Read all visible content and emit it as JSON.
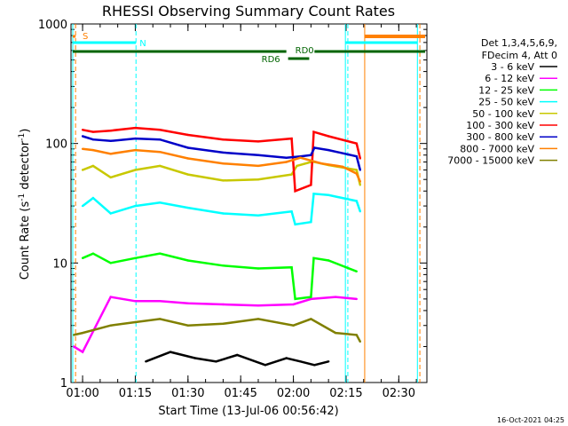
{
  "chart_data": {
    "type": "line",
    "title": "RHESSI Observing Summary Count Rates",
    "xlabel": "Start Time (13-Jul-06 00:56:42)",
    "ylabel_main": "Count Rate (s",
    "ylabel_sup": "-1",
    "ylabel_mid": " detector",
    "ylabel_sup2": "-1",
    "ylabel_end": ")",
    "yscale": "log",
    "ylim": [
      1,
      1000
    ],
    "xlim_minutes": [
      56.7,
      158.0
    ],
    "x_ticks": [
      {
        "label": "01:00",
        "min": 60
      },
      {
        "label": "01:15",
        "min": 75
      },
      {
        "label": "01:30",
        "min": 90
      },
      {
        "label": "01:45",
        "min": 105
      },
      {
        "label": "02:00",
        "min": 120
      },
      {
        "label": "02:15",
        "min": 135
      },
      {
        "label": "02:30",
        "min": 150
      }
    ],
    "y_ticks": [
      {
        "label": "1",
        "value": 1
      },
      {
        "label": "10",
        "value": 10
      },
      {
        "label": "100",
        "value": 100
      },
      {
        "label": "1000",
        "value": 1000
      }
    ],
    "legend_header": [
      "Det 1,3,4,5,6,9,",
      "FDecim 4, Att 0"
    ],
    "legend_position": "right",
    "series": [
      {
        "name": "3 - 6 keV",
        "color": "#000000",
        "x": [
          78,
          85,
          92,
          98,
          104,
          112,
          118,
          122,
          126,
          130
        ],
        "y": [
          1.5,
          1.8,
          1.6,
          1.5,
          1.7,
          1.4,
          1.6,
          1.5,
          1.4,
          1.5
        ]
      },
      {
        "name": "6 - 12 keV",
        "color": "#ff00ff",
        "x": [
          57.5,
          60,
          68,
          75,
          82,
          90,
          100,
          110,
          120,
          125,
          132,
          138
        ],
        "y": [
          2.0,
          1.8,
          5.2,
          4.8,
          4.8,
          4.6,
          4.5,
          4.4,
          4.5,
          5.0,
          5.2,
          5.0
        ]
      },
      {
        "name": "12 - 25 keV",
        "color": "#00ff00",
        "x": [
          60,
          63,
          68,
          75,
          82,
          90,
          100,
          110,
          119.5,
          120.5,
          125,
          125.8,
          130,
          138
        ],
        "y": [
          11,
          12,
          10,
          11,
          12,
          10.5,
          9.5,
          9.0,
          9.2,
          5.0,
          5.2,
          11,
          10.5,
          8.5
        ]
      },
      {
        "name": "25 - 50 keV",
        "color": "#00ffff",
        "x": [
          60,
          63,
          68,
          75,
          82,
          90,
          100,
          110,
          119.5,
          120.5,
          125,
          125.8,
          130,
          138,
          139
        ],
        "y": [
          30,
          35,
          26,
          30,
          32,
          29,
          26,
          25,
          27,
          21,
          22,
          38,
          37,
          33,
          27
        ]
      },
      {
        "name": "50 - 100 keV",
        "color": "#c8c800",
        "x": [
          60,
          63,
          68,
          75,
          82,
          90,
          100,
          110,
          119.5,
          121,
          125,
          126,
          130,
          138,
          139
        ],
        "y": [
          60,
          65,
          52,
          60,
          65,
          55,
          49,
          50,
          55,
          65,
          70,
          70,
          66,
          60,
          45
        ]
      },
      {
        "name": "100 - 300 keV",
        "color": "#ff0000",
        "x": [
          60,
          63,
          68,
          75,
          82,
          90,
          100,
          110,
          119.5,
          120.5,
          125,
          125.8,
          130,
          138,
          139
        ],
        "y": [
          130,
          125,
          128,
          135,
          130,
          118,
          108,
          104,
          110,
          40,
          45,
          125,
          115,
          100,
          75
        ]
      },
      {
        "name": "300 - 800 keV",
        "color": "#0000c8",
        "x": [
          60,
          63,
          68,
          75,
          82,
          90,
          100,
          110,
          118,
          122,
          125,
          126,
          130,
          138,
          139
        ],
        "y": [
          115,
          108,
          105,
          110,
          108,
          92,
          84,
          80,
          76,
          78,
          80,
          92,
          88,
          78,
          60
        ]
      },
      {
        "name": "800 - 7000 keV",
        "color": "#ff8000",
        "x": [
          60,
          63,
          68,
          75,
          82,
          90,
          100,
          110,
          118,
          122,
          125,
          128,
          134,
          138,
          139
        ],
        "y": [
          90,
          88,
          82,
          88,
          85,
          75,
          68,
          65,
          70,
          76,
          72,
          68,
          64,
          56,
          48
        ]
      },
      {
        "name": "7000 - 15000 keV",
        "color": "#808000",
        "x": [
          57.5,
          60,
          68,
          75,
          82,
          90,
          100,
          110,
          120,
          125,
          132,
          138,
          139
        ],
        "y": [
          2.5,
          2.6,
          3.0,
          3.2,
          3.4,
          3.0,
          3.1,
          3.4,
          3.0,
          3.4,
          2.6,
          2.5,
          2.2
        ]
      }
    ],
    "annotations": [
      {
        "text": "S",
        "color": "#ff8000"
      },
      {
        "text": "N",
        "color": "#00ffff"
      },
      {
        "text": "RD0",
        "color": "#006400"
      },
      {
        "text": "RD6",
        "color": "#006400"
      }
    ],
    "footer_date": "16-Oct-2021 04:25"
  }
}
